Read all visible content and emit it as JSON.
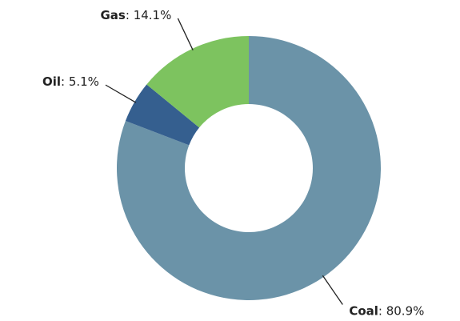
{
  "chart_data": {
    "type": "donut",
    "categories": [
      "Coal",
      "Oil",
      "Gas"
    ],
    "values": [
      80.9,
      5.1,
      14.1
    ],
    "value_labels": [
      "80.9%",
      "5.1%",
      "14.1%"
    ],
    "label_separator": ": ",
    "colors": [
      "#6b93a8",
      "#355f8f",
      "#7dc35f"
    ]
  }
}
